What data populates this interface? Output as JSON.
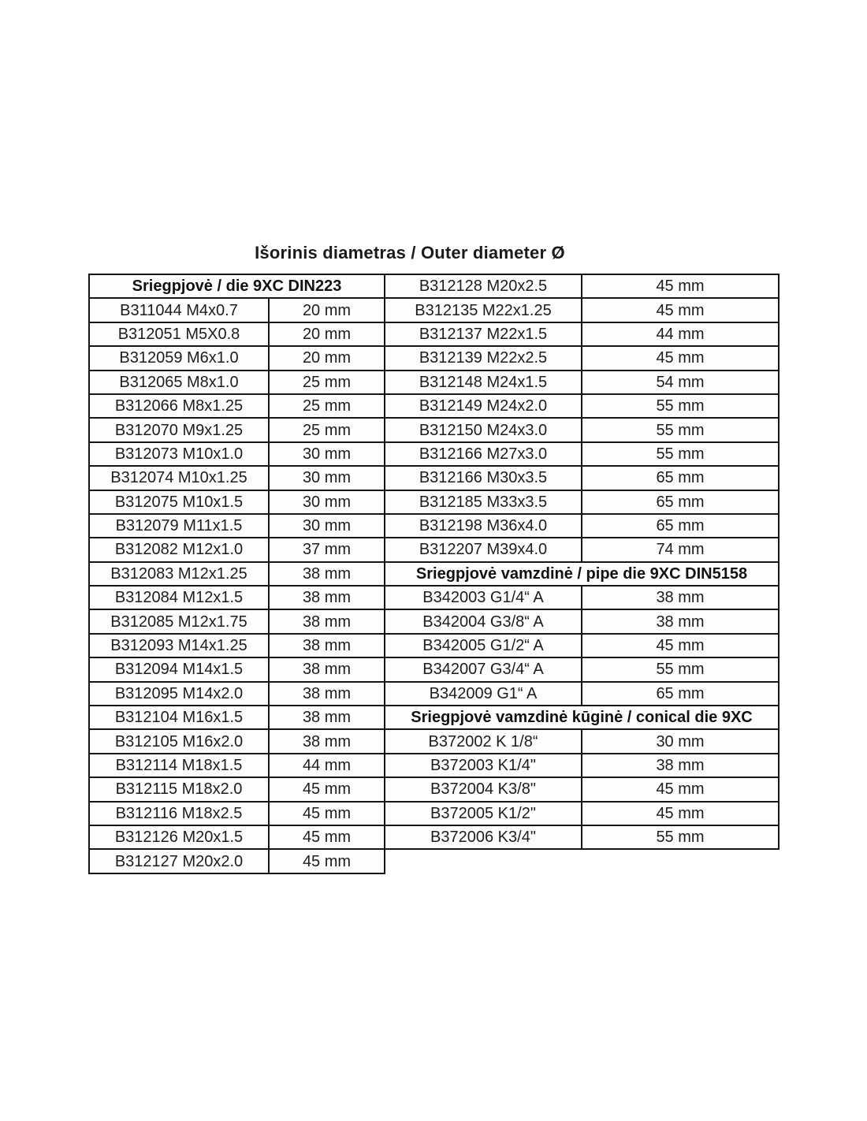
{
  "page": {
    "title": "Išorinis diametras / Outer diameter Ø"
  },
  "tables": {
    "left": {
      "rows": [
        {
          "type": "header",
          "label": "Sriegpjovė / die 9XC DIN223"
        },
        {
          "type": "data",
          "code": "B311044 M4x0.7",
          "dia": "20 mm"
        },
        {
          "type": "data",
          "code": "B312051 M5X0.8",
          "dia": "20 mm"
        },
        {
          "type": "data",
          "code": "B312059 M6x1.0",
          "dia": "20 mm"
        },
        {
          "type": "data",
          "code": "B312065 M8x1.0",
          "dia": "25 mm"
        },
        {
          "type": "data",
          "code": "B312066 M8x1.25",
          "dia": "25 mm"
        },
        {
          "type": "data",
          "code": "B312070 M9x1.25",
          "dia": "25 mm"
        },
        {
          "type": "data",
          "code": "B312073 M10x1.0",
          "dia": "30 mm"
        },
        {
          "type": "data",
          "code": "B312074 M10x1.25",
          "dia": "30 mm"
        },
        {
          "type": "data",
          "code": "B312075 M10x1.5",
          "dia": "30 mm"
        },
        {
          "type": "data",
          "code": "B312079 M11x1.5",
          "dia": "30 mm"
        },
        {
          "type": "data",
          "code": "B312082 M12x1.0",
          "dia": "37 mm"
        },
        {
          "type": "data",
          "code": "B312083 M12x1.25",
          "dia": "38 mm"
        },
        {
          "type": "data",
          "code": "B312084 M12x1.5",
          "dia": "38 mm"
        },
        {
          "type": "data",
          "code": "B312085 M12x1.75",
          "dia": "38 mm"
        },
        {
          "type": "data",
          "code": "B312093 M14x1.25",
          "dia": "38 mm"
        },
        {
          "type": "data",
          "code": "B312094 M14x1.5",
          "dia": "38 mm"
        },
        {
          "type": "data",
          "code": "B312095 M14x2.0",
          "dia": "38 mm"
        },
        {
          "type": "data",
          "code": "B312104 M16x1.5",
          "dia": "38 mm"
        },
        {
          "type": "data",
          "code": "B312105 M16x2.0",
          "dia": "38 mm"
        },
        {
          "type": "data",
          "code": "B312114 M18x1.5",
          "dia": "44 mm"
        },
        {
          "type": "data",
          "code": "B312115 M18x2.0",
          "dia": "45 mm"
        },
        {
          "type": "data",
          "code": "B312116 M18x2.5",
          "dia": "45 mm"
        },
        {
          "type": "data",
          "code": "B312126 M20x1.5",
          "dia": "45 mm"
        },
        {
          "type": "data",
          "code": "B312127 M20x2.0",
          "dia": "45 mm"
        }
      ]
    },
    "right": {
      "rows": [
        {
          "type": "data",
          "code": "B312128 M20x2.5",
          "dia": "45 mm"
        },
        {
          "type": "data",
          "code": "B312135 M22x1.25",
          "dia": "45 mm"
        },
        {
          "type": "data",
          "code": "B312137 M22x1.5",
          "dia": "44 mm"
        },
        {
          "type": "data",
          "code": "B312139 M22x2.5",
          "dia": "45 mm"
        },
        {
          "type": "data",
          "code": "B312148 M24x1.5",
          "dia": "54 mm"
        },
        {
          "type": "data",
          "code": "B312149 M24x2.0",
          "dia": "55 mm"
        },
        {
          "type": "data",
          "code": "B312150 M24x3.0",
          "dia": "55 mm"
        },
        {
          "type": "data",
          "code": "B312166 M27x3.0",
          "dia": "55 mm"
        },
        {
          "type": "data",
          "code": "B312166 M30x3.5",
          "dia": "65 mm"
        },
        {
          "type": "data",
          "code": "B312185 M33x3.5",
          "dia": "65 mm"
        },
        {
          "type": "data",
          "code": "B312198 M36x4.0",
          "dia": "65 mm"
        },
        {
          "type": "data",
          "code": "B312207 M39x4.0",
          "dia": "74 mm"
        },
        {
          "type": "header",
          "label": "Sriegpjovė vamzdinė / pipe die 9XC DIN5158"
        },
        {
          "type": "data",
          "code": "B342003 G1/4“ A",
          "dia": "38 mm"
        },
        {
          "type": "data",
          "code": "B342004 G3/8“ A",
          "dia": "38 mm"
        },
        {
          "type": "data",
          "code": "B342005 G1/2“ A",
          "dia": "45 mm"
        },
        {
          "type": "data",
          "code": "B342007 G3/4“ A",
          "dia": "55 mm"
        },
        {
          "type": "data",
          "code": "B342009 G1“ A",
          "dia": "65 mm"
        },
        {
          "type": "header",
          "label": "Sriegpjovė vamzdinė kūginė / conical die 9XC"
        },
        {
          "type": "data",
          "code": "B372002 K 1/8“",
          "dia": "30 mm"
        },
        {
          "type": "data",
          "code": "B372003 K1/4\"",
          "dia": "38 mm"
        },
        {
          "type": "data",
          "code": "B372004 K3/8\"",
          "dia": "45 mm"
        },
        {
          "type": "data",
          "code": "B372005 K1/2\"",
          "dia": "45 mm"
        },
        {
          "type": "data",
          "code": "B372006 K3/4\"",
          "dia": "55 mm"
        }
      ]
    }
  }
}
